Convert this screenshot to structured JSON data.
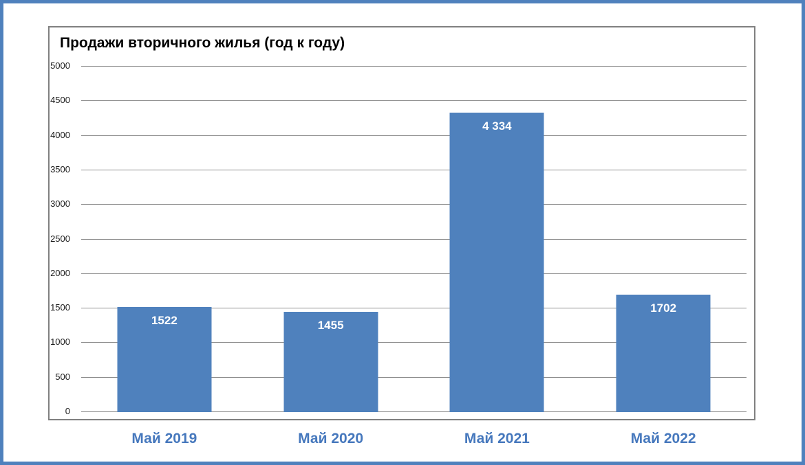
{
  "frame": {
    "border_color": "#4f81bd",
    "background_color": "#ffffff"
  },
  "chart_data": {
    "type": "bar",
    "title": "Продажи вторичного жилья (год к году)",
    "categories": [
      "Май 2019",
      "Май 2020",
      "Май 2021",
      "Май 2022"
    ],
    "values": [
      1522,
      1455,
      4334,
      1702
    ],
    "value_labels": [
      "1522",
      "1455",
      "4 334",
      "1702"
    ],
    "xlabel": "",
    "ylabel": "",
    "ylim": [
      0,
      5000
    ],
    "yticks": [
      5000,
      4500,
      4000,
      3500,
      3000,
      2500,
      2000,
      1500,
      1000,
      500,
      0
    ],
    "grid": true,
    "legend": "none",
    "bar_color": "#4f81bd",
    "value_label_color": "#ffffff",
    "category_label_color": "#4678bd",
    "gridline_color": "#8c8c8c",
    "plot_border_color": "#808080",
    "title_color": "#000000",
    "tick_label_color": "#1a1a1a"
  }
}
